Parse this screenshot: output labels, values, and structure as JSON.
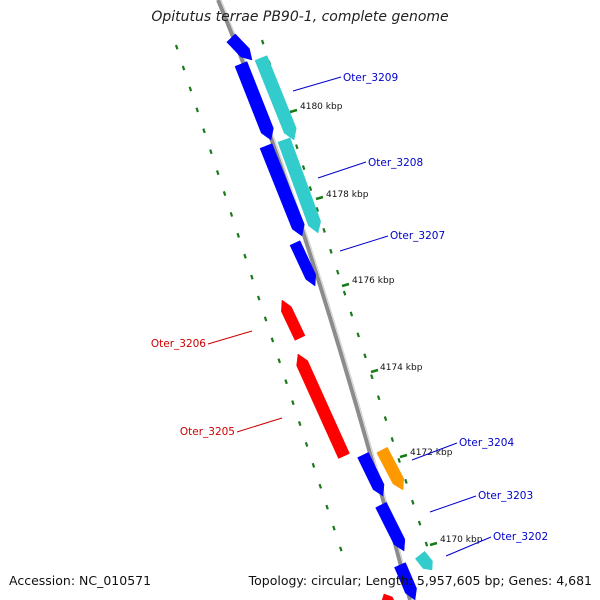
{
  "title": "Opitutus terrae PB90-1, complete genome",
  "footer": {
    "accession": "Accession: NC_010571",
    "summary": "Topology: circular; Length: 5,957,605 bp; Genes: 4,681"
  },
  "colors": {
    "backbone": "#8c8c8c",
    "blue_gene": "#0000ff",
    "cyan_gene": "#33cccc",
    "red_gene": "#ff0000",
    "orange_gene": "#ff9900",
    "dashes": "#1a7a1a",
    "forward_label": "#0000cc",
    "reverse_label": "#cc0000"
  },
  "ticks": [
    {
      "label": "4180 kbp"
    },
    {
      "label": "4178 kbp"
    },
    {
      "label": "4176 kbp"
    },
    {
      "label": "4174 kbp"
    },
    {
      "label": "4172 kbp"
    },
    {
      "label": "4170 kbp"
    }
  ],
  "gene_labels": [
    {
      "label": "Oter_3209",
      "strand": "forward"
    },
    {
      "label": "Oter_3208",
      "strand": "forward"
    },
    {
      "label": "Oter_3207",
      "strand": "forward"
    },
    {
      "label": "Oter_3206",
      "strand": "reverse"
    },
    {
      "label": "Oter_3205",
      "strand": "reverse"
    },
    {
      "label": "Oter_3204",
      "strand": "forward"
    },
    {
      "label": "Oter_3203",
      "strand": "forward"
    },
    {
      "label": "Oter_3202",
      "strand": "forward"
    }
  ]
}
